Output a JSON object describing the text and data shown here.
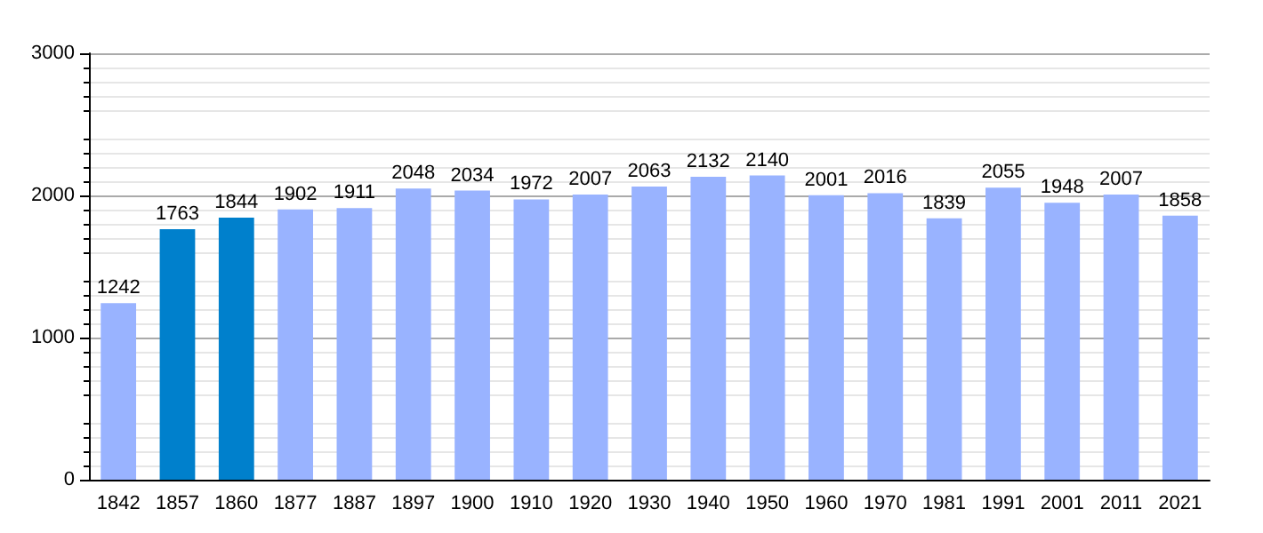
{
  "chart_data": {
    "type": "bar",
    "categories": [
      "1842",
      "1857",
      "1860",
      "1877",
      "1887",
      "1897",
      "1900",
      "1910",
      "1920",
      "1930",
      "1940",
      "1950",
      "1960",
      "1970",
      "1981",
      "1991",
      "2001",
      "2011",
      "2021"
    ],
    "values": [
      1242,
      1763,
      1844,
      1902,
      1911,
      2048,
      2034,
      1972,
      2007,
      2063,
      2132,
      2140,
      2001,
      2016,
      1839,
      2055,
      1948,
      2007,
      1858
    ],
    "colors": [
      "#99b3ff",
      "#0080cc",
      "#0080cc",
      "#99b3ff",
      "#99b3ff",
      "#99b3ff",
      "#99b3ff",
      "#99b3ff",
      "#99b3ff",
      "#99b3ff",
      "#99b3ff",
      "#99b3ff",
      "#99b3ff",
      "#99b3ff",
      "#99b3ff",
      "#99b3ff",
      "#99b3ff",
      "#99b3ff",
      "#99b3ff"
    ],
    "ylim": [
      0,
      3000
    ],
    "yticks": [
      0,
      1000,
      2000,
      3000
    ],
    "grid": true,
    "data_labels": true
  }
}
